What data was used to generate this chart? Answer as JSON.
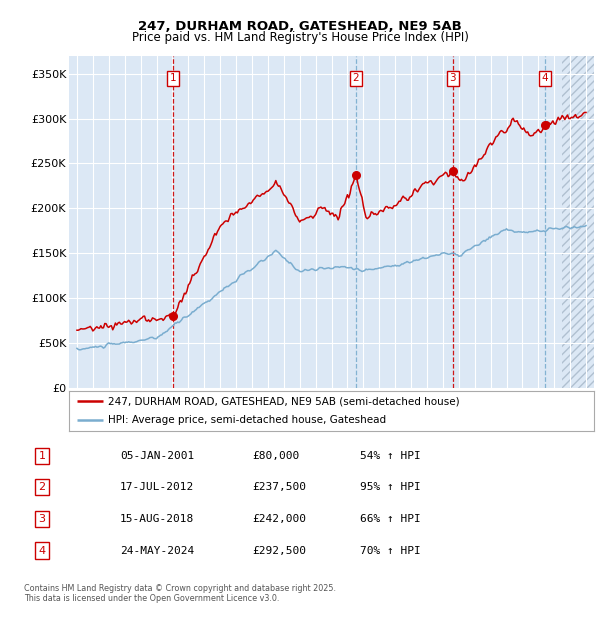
{
  "title1": "247, DURHAM ROAD, GATESHEAD, NE9 5AB",
  "title2": "Price paid vs. HM Land Registry's House Price Index (HPI)",
  "ylabel_values": [
    "£0",
    "£50K",
    "£100K",
    "£150K",
    "£200K",
    "£250K",
    "£300K",
    "£350K"
  ],
  "yticks": [
    0,
    50000,
    100000,
    150000,
    200000,
    250000,
    300000,
    350000
  ],
  "ylim": [
    0,
    370000
  ],
  "xlim_start": 1994.5,
  "xlim_end": 2027.5,
  "sale_dates": [
    2001.04,
    2012.54,
    2018.62,
    2024.4
  ],
  "sale_prices": [
    80000,
    237500,
    242000,
    292500
  ],
  "sale_labels": [
    "1",
    "2",
    "3",
    "4"
  ],
  "sale_date_strs": [
    "05-JAN-2001",
    "17-JUL-2012",
    "15-AUG-2018",
    "24-MAY-2024"
  ],
  "sale_prices_str": [
    "£80,000",
    "£237,500",
    "£242,000",
    "£292,500"
  ],
  "sale_pct": [
    "54%",
    "95%",
    "66%",
    "70%"
  ],
  "vline_styles": [
    "red_solid",
    "blue_dash",
    "red_solid",
    "blue_dash"
  ],
  "legend_line1": "247, DURHAM ROAD, GATESHEAD, NE9 5AB (semi-detached house)",
  "legend_line2": "HPI: Average price, semi-detached house, Gateshead",
  "footer1": "Contains HM Land Registry data © Crown copyright and database right 2025.",
  "footer2": "This data is licensed under the Open Government Licence v3.0.",
  "red_color": "#cc0000",
  "blue_color": "#7aadcf",
  "vline_red": "#cc0000",
  "vline_blue": "#7aadcf",
  "plot_bg": "#dce8f5",
  "fig_bg": "#ffffff"
}
